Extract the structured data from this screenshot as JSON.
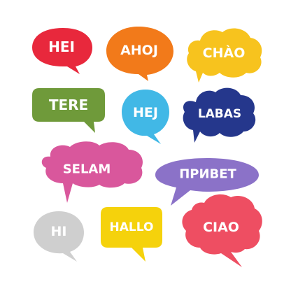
{
  "bubbles": [
    {
      "id": "hei",
      "text": "HEI",
      "color": "#e8283c"
    },
    {
      "id": "ahoj",
      "text": "AHOJ",
      "color": "#f27a1a"
    },
    {
      "id": "chao",
      "text": "CHÀO",
      "color": "#f7c31e"
    },
    {
      "id": "tere",
      "text": "TERE",
      "color": "#6f9a3a"
    },
    {
      "id": "hej",
      "text": "HEJ",
      "color": "#41b8e6"
    },
    {
      "id": "labas",
      "text": "LABAS",
      "color": "#25378c"
    },
    {
      "id": "selam",
      "text": "SELAM",
      "color": "#d9579c"
    },
    {
      "id": "privet",
      "text": "ПРИВЕТ",
      "color": "#8b72c8"
    },
    {
      "id": "hi",
      "text": "HI",
      "color": "#cfcfcf"
    },
    {
      "id": "hallo",
      "text": "HALLO",
      "color": "#f5d20c"
    },
    {
      "id": "ciao",
      "text": "CIAO",
      "color": "#ee4e62"
    }
  ]
}
